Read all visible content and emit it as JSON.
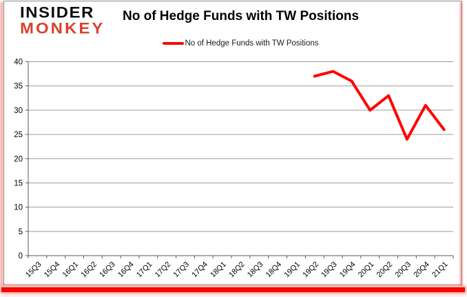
{
  "logo": {
    "line1": "INSIDER",
    "line2": "MONKEY",
    "line1_color": "#0d0d0d",
    "line2_color": "#d7432e"
  },
  "header": {
    "title": "No of Hedge Funds with TW Positions"
  },
  "legend": {
    "label": "No of Hedge Funds with TW Positions",
    "line_color": "#ff0000"
  },
  "colors": {
    "series_line": "#ff0000",
    "gridline": "#9a9a9a",
    "axis": "#595959",
    "frame_border": "#8a8a8a",
    "bottom_glow": "#f50800",
    "background": "#ffffff"
  },
  "chart_data": {
    "type": "line",
    "title": "No of Hedge Funds with TW Positions",
    "categories": [
      "15Q3",
      "15Q4",
      "16Q1",
      "16Q2",
      "16Q3",
      "16Q4",
      "17Q1",
      "17Q2",
      "17Q3",
      "17Q4",
      "18Q1",
      "18Q2",
      "18Q3",
      "18Q4",
      "19Q1",
      "19Q2",
      "19Q3",
      "19Q4",
      "20Q1",
      "20Q2",
      "20Q3",
      "20Q4",
      "21Q1"
    ],
    "series": [
      {
        "name": "No of Hedge Funds with TW Positions",
        "color": "#ff0000",
        "values": [
          null,
          null,
          null,
          null,
          null,
          null,
          null,
          null,
          null,
          null,
          null,
          null,
          null,
          null,
          null,
          37,
          38,
          36,
          30,
          33,
          24,
          31,
          26
        ]
      }
    ],
    "xlabel": "",
    "ylabel": "",
    "ylim": [
      0,
      40
    ],
    "ytick_interval": 5,
    "grid": true,
    "legend_position": "top"
  }
}
